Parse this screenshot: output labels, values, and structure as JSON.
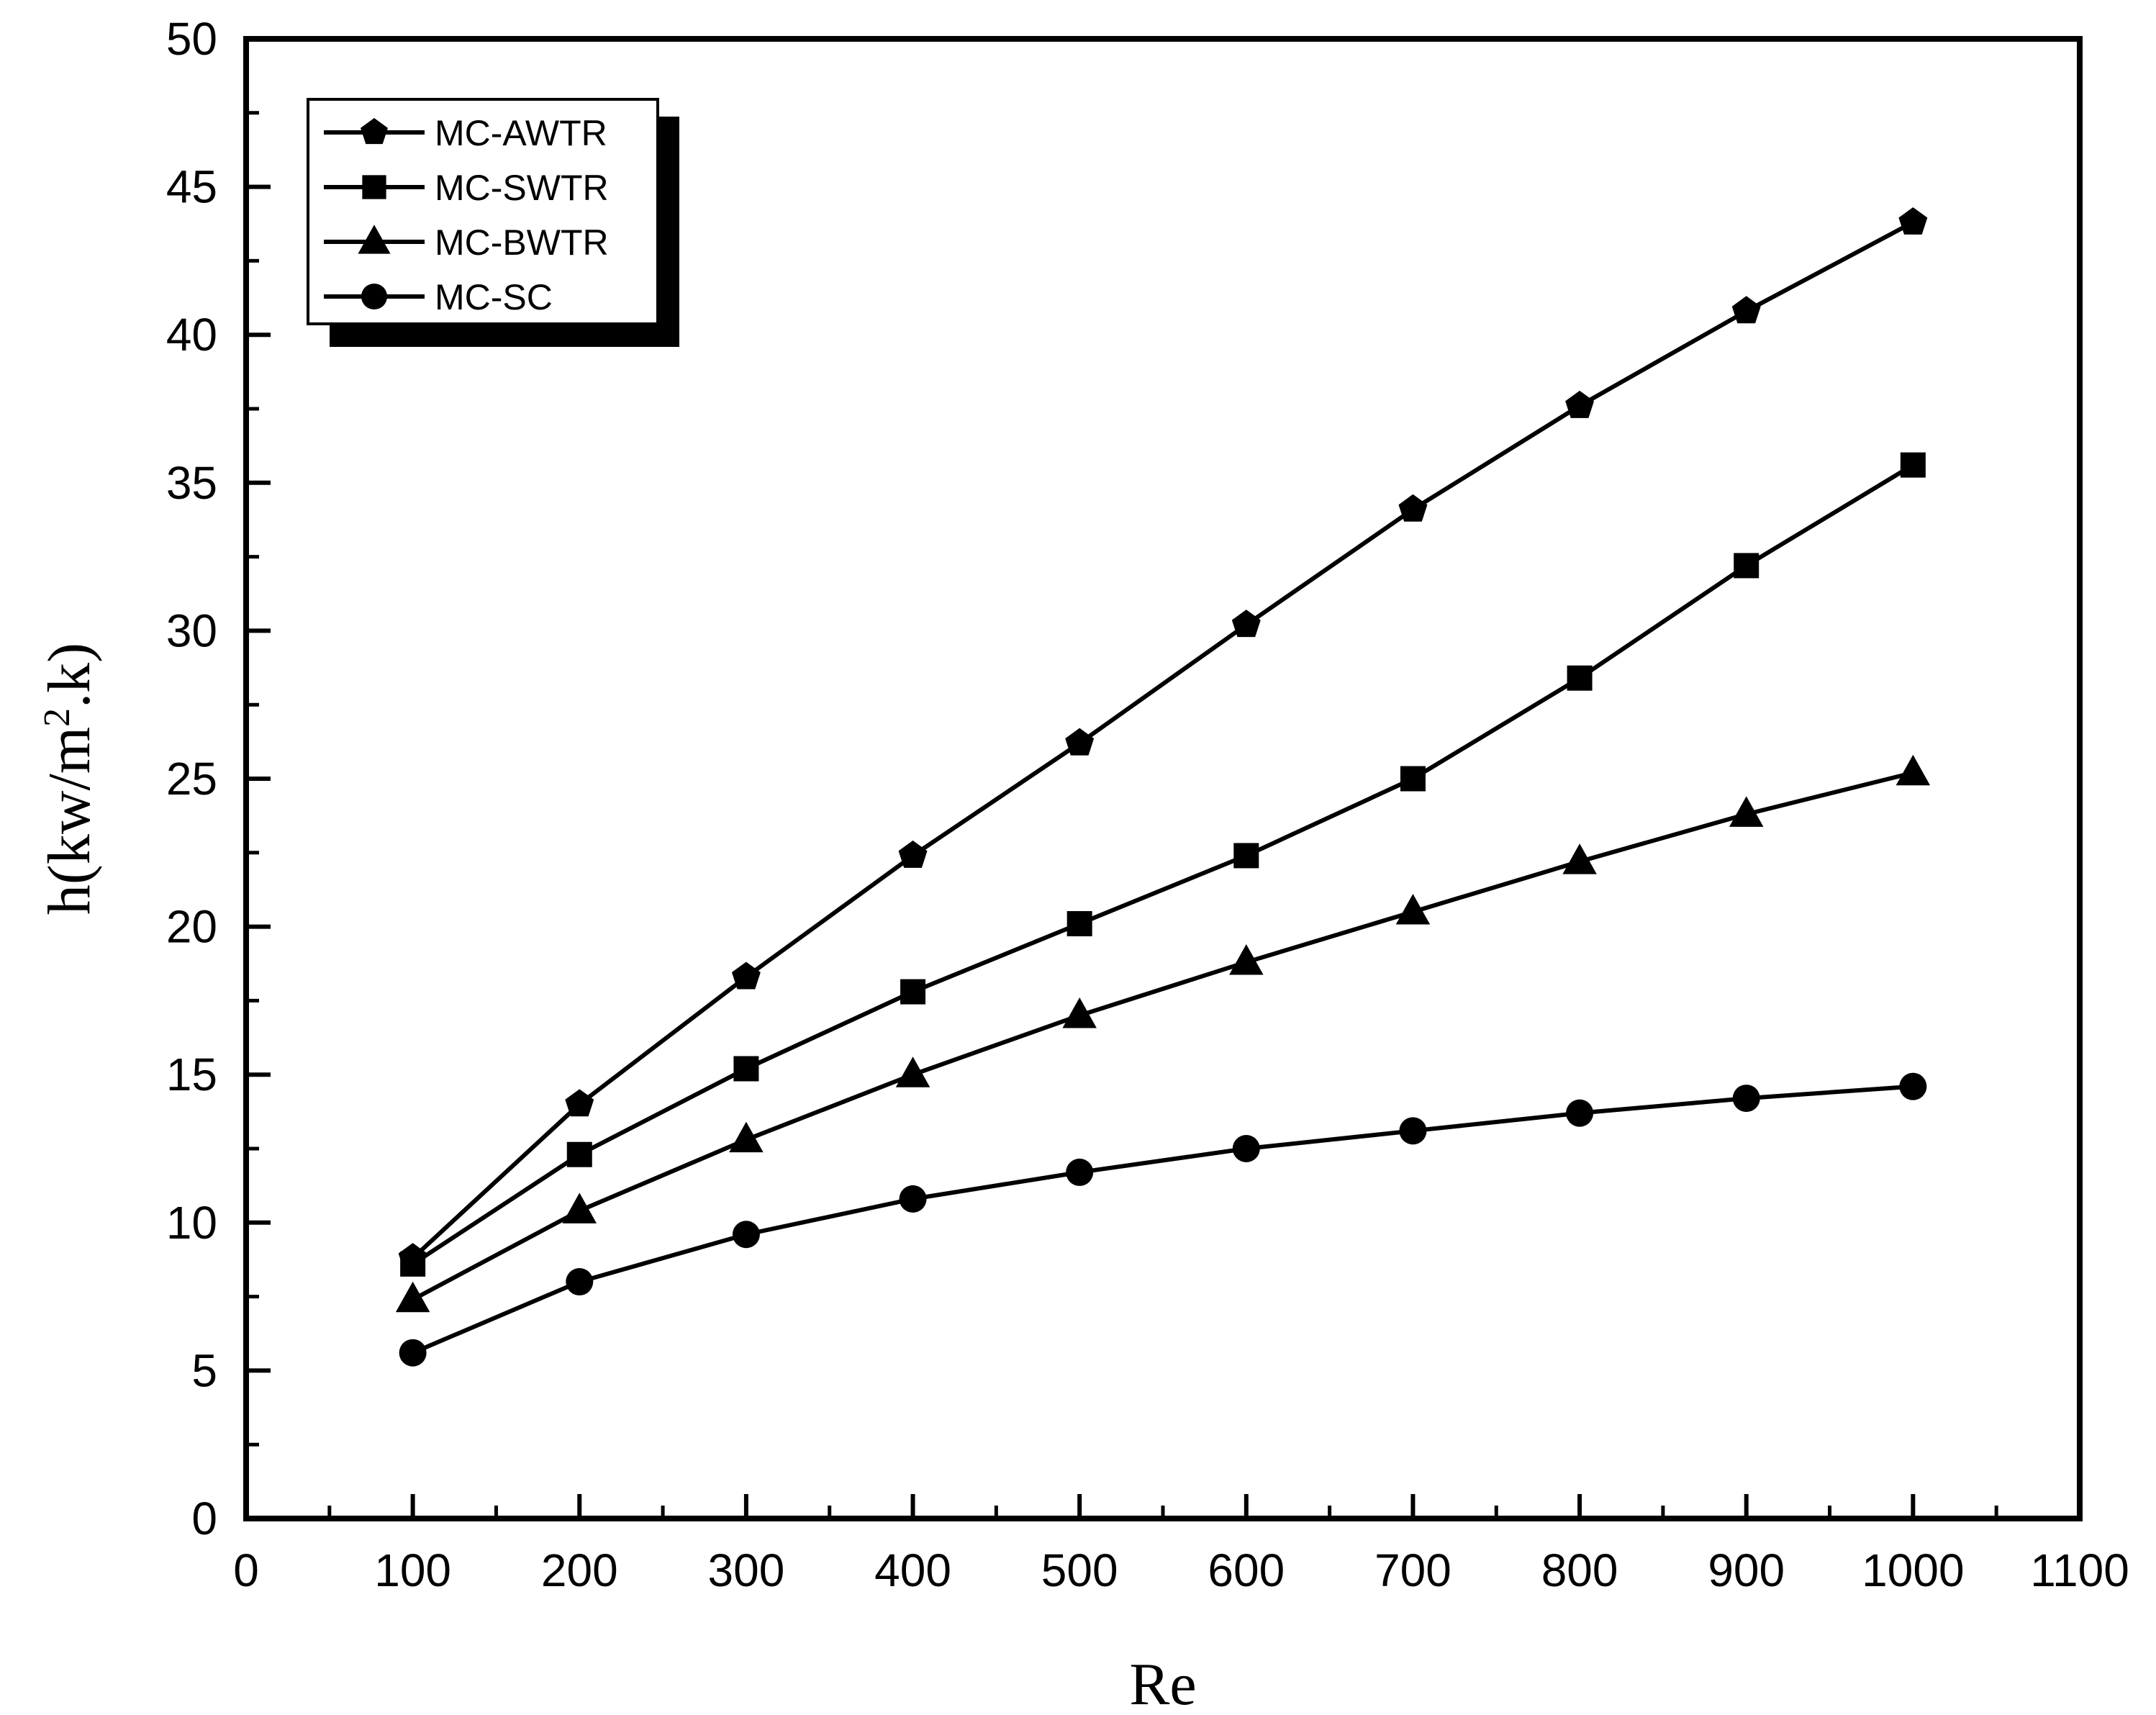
{
  "chart_data": {
    "type": "line",
    "xlabel": "Re",
    "ylabel": {
      "base": "h(kw/m",
      "sup": "2",
      "tail": ".k)"
    },
    "xlim": [
      0,
      1100
    ],
    "ylim": [
      0,
      50
    ],
    "xticks": [
      0,
      100,
      200,
      300,
      400,
      500,
      600,
      700,
      800,
      900,
      1000,
      1100
    ],
    "yticks": [
      0,
      5,
      10,
      15,
      20,
      25,
      30,
      35,
      40,
      45,
      50
    ],
    "grid": false,
    "legend_position": "top-left",
    "x": [
      100,
      200,
      300,
      400,
      500,
      600,
      700,
      800,
      900,
      1000
    ],
    "series": [
      {
        "name": "MC-AWTR",
        "marker": "pentagon",
        "values": [
          8.8,
          14.0,
          18.3,
          22.4,
          26.2,
          30.2,
          34.1,
          37.6,
          40.8,
          43.8
        ]
      },
      {
        "name": "MC-SWTR",
        "marker": "square",
        "values": [
          8.6,
          12.3,
          15.2,
          17.8,
          20.1,
          22.4,
          25.0,
          28.4,
          32.2,
          35.6
        ]
      },
      {
        "name": "MC-BWTR",
        "marker": "triangle",
        "values": [
          7.4,
          10.4,
          12.8,
          15.0,
          17.0,
          18.8,
          20.5,
          22.2,
          23.8,
          25.2
        ]
      },
      {
        "name": "MC-SC",
        "marker": "circle",
        "values": [
          5.6,
          8.0,
          9.6,
          10.8,
          11.7,
          12.5,
          13.1,
          13.7,
          14.2,
          14.6
        ]
      }
    ],
    "colors": {
      "line": "#000000",
      "background": "#ffffff"
    }
  }
}
